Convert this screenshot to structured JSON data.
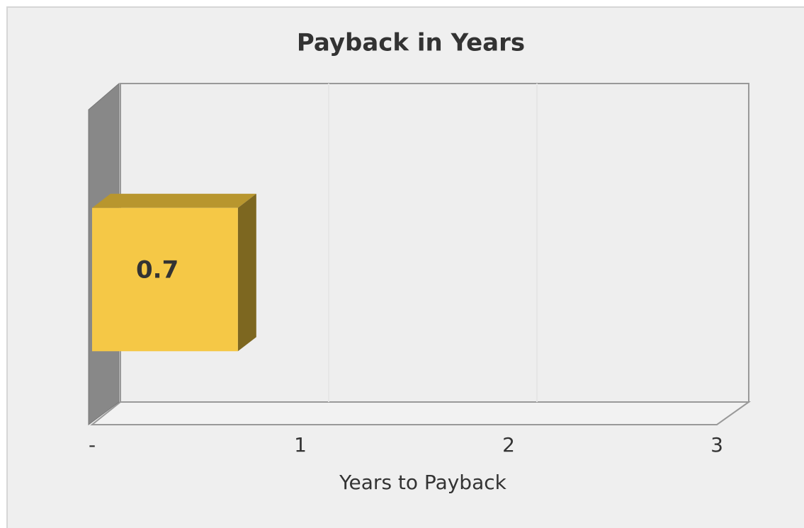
{
  "chart_data": {
    "type": "bar",
    "orientation": "horizontal",
    "title": "Payback in Years",
    "x_label": "Years to Payback",
    "categories": [
      null
    ],
    "values": [
      0.7
    ],
    "color": "#f5c846",
    "xlim": [
      0,
      3
    ],
    "xticks": [
      {
        "value": 0,
        "label": "-"
      },
      1,
      2,
      3
    ],
    "grid": true
  }
}
